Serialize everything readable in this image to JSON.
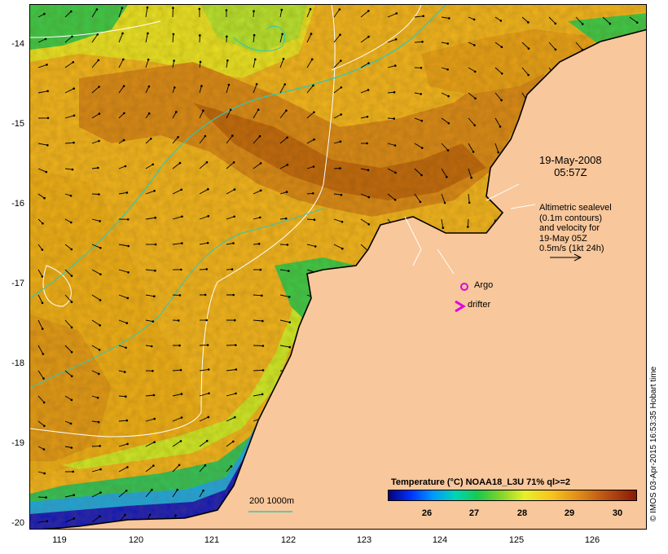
{
  "map": {
    "lat_ticks": [
      "-14",
      "-15",
      "-16",
      "-17",
      "-18",
      "-19",
      "-20"
    ],
    "lon_ticks": [
      "119",
      "120",
      "121",
      "122",
      "123",
      "124",
      "125",
      "126"
    ],
    "date_line1": "19-May-2008",
    "date_line2": "05:57Z",
    "altimetry_lines": [
      "Altimetric sealevel",
      "(0.1m contours)",
      "and velocity for",
      "19-May 05Z",
      "0.5m/s (1kt 24h)"
    ],
    "argo_label": "Argo",
    "drifter_label": "drifter",
    "depth_label": "200  1000m",
    "credit": "© IMOS 03-Apr-2015 16:53:35 Hobart time",
    "colorbar_title": "Temperature (°C) NOAA18_L3U 71% ql>=2",
    "colorbar_ticks": [
      "26",
      "27",
      "28",
      "29",
      "30"
    ],
    "colors": {
      "land": "#f8c79b",
      "warm": "#c86e14",
      "mid": "#f0b420",
      "cool": "#e8f02a",
      "green": "#2dc84a",
      "blue": "#0022cc",
      "depth_contour": "#30c8b8",
      "argo": "#e000e0"
    }
  }
}
